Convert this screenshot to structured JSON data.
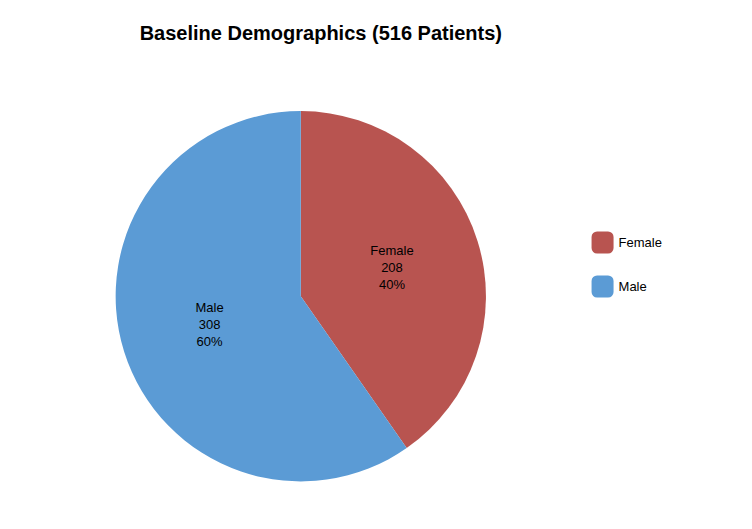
{
  "chart_data": {
    "type": "pie",
    "title": "Baseline Demographics (516 Patients)",
    "categories": [
      "Female",
      "Male"
    ],
    "values": [
      208,
      308
    ],
    "value_labels": [
      "Female\n208\n40%",
      "Male\n308\n60%"
    ],
    "colors": [
      "#b85450",
      "#5b9bd5"
    ],
    "legend": "right"
  }
}
